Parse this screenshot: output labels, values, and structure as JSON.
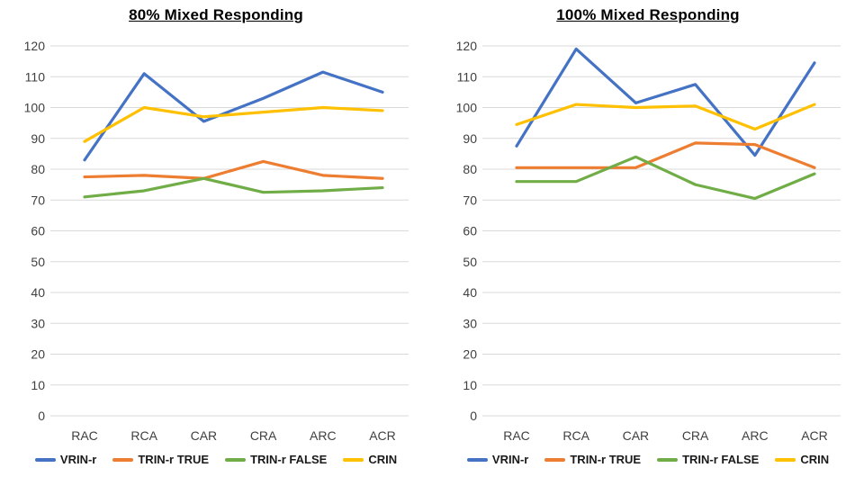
{
  "chart_data": [
    {
      "type": "line",
      "title": "80% Mixed Responding",
      "categories": [
        "RAC",
        "RCA",
        "CAR",
        "CRA",
        "ARC",
        "ACR"
      ],
      "series": [
        {
          "name": "VRIN-r",
          "color": "#4472C4",
          "values": [
            83,
            111,
            95.5,
            103,
            111.5,
            105
          ]
        },
        {
          "name": "TRIN-r TRUE",
          "color": "#ED7D31",
          "values": [
            77.5,
            78,
            77,
            82.5,
            78,
            77
          ]
        },
        {
          "name": "TRIN-r FALSE",
          "color": "#70AD47",
          "values": [
            71,
            73,
            77,
            72.5,
            73,
            74
          ]
        },
        {
          "name": "CRIN",
          "color": "#FFC000",
          "values": [
            89,
            100,
            97,
            98.5,
            100,
            99
          ]
        }
      ],
      "ylim": [
        0,
        120
      ],
      "ytick_step": 10,
      "xlabel": "",
      "ylabel": "",
      "grid": "horizontal",
      "legend_position": "bottom"
    },
    {
      "type": "line",
      "title": "100% Mixed Responding",
      "categories": [
        "RAC",
        "RCA",
        "CAR",
        "CRA",
        "ARC",
        "ACR"
      ],
      "series": [
        {
          "name": "VRIN-r",
          "color": "#4472C4",
          "values": [
            87.5,
            119,
            101.5,
            107.5,
            84.5,
            114.5
          ]
        },
        {
          "name": "TRIN-r TRUE",
          "color": "#ED7D31",
          "values": [
            80.5,
            80.5,
            80.5,
            88.5,
            88,
            80.5
          ]
        },
        {
          "name": "TRIN-r FALSE",
          "color": "#70AD47",
          "values": [
            76,
            76,
            84,
            75,
            70.5,
            78.5
          ]
        },
        {
          "name": "CRIN",
          "color": "#FFC000",
          "values": [
            94.5,
            101,
            100,
            100.5,
            93,
            101
          ]
        }
      ],
      "ylim": [
        0,
        120
      ],
      "ytick_step": 10,
      "xlabel": "",
      "ylabel": "",
      "grid": "horizontal",
      "legend_position": "bottom"
    }
  ],
  "styles": {
    "grid_color": "#D9D9D9",
    "tick_label_color": "#404040",
    "title_color": "#000000",
    "legend_text_color": "#1a1a1a",
    "background": "#ffffff"
  }
}
